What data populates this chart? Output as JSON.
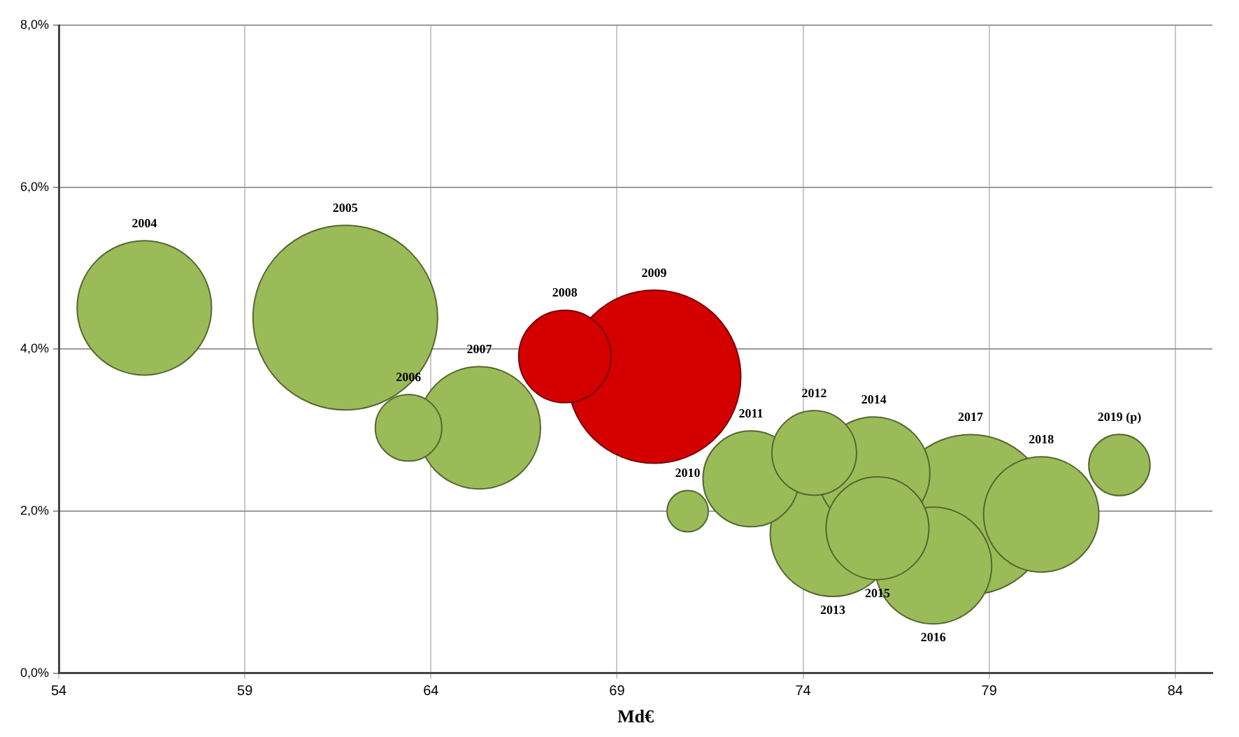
{
  "chart_data": {
    "type": "bubble",
    "xlabel": "Md€",
    "series": [
      {
        "colors": [
          "#9bbb59",
          "#9bbb59",
          "#9bbb59",
          "#9bbb59",
          "#d40000",
          "#d40000",
          "#9bbb59",
          "#9bbb59",
          "#9bbb59",
          "#9bbb59",
          "#9bbb59",
          "#9bbb59",
          "#9bbb59",
          "#9bbb59",
          "#9bbb59",
          "#9bbb59"
        ],
        "x": [
          56.3,
          61.7,
          63.4,
          65.3,
          67.6,
          70.0,
          70.9,
          72.6,
          74.3,
          74.8,
          75.9,
          76.0,
          77.5,
          78.5,
          80.4,
          82.5
        ],
        "values": [
          4.51,
          4.39,
          3.03,
          3.03,
          3.91,
          3.66,
          2.0,
          2.4,
          2.72,
          1.72,
          2.47,
          1.79,
          1.33,
          1.96,
          1.96,
          2.57
        ],
        "sizes": [
          0.53,
          1,
          0.13,
          0.44,
          0.25,
          0.88,
          0.05,
          0.27,
          0.21,
          0.46,
          0.37,
          0.31,
          0.4,
          0.75,
          0.39,
          0.11
        ]
      }
    ],
    "annotations": [
      "2004",
      "2005",
      "2006",
      "2007",
      "2008",
      "2009",
      "2010",
      "2011",
      "2012",
      "2013",
      "2014",
      "2015",
      "2016",
      "2017",
      "2018",
      "2019 (p)"
    ],
    "xlim": [
      54,
      85
    ],
    "xticks": [
      54,
      59,
      64,
      69,
      74,
      79,
      84
    ],
    "ylim": [
      0,
      8
    ],
    "yticks": [
      {
        "value": 0,
        "label": "0,0%"
      },
      {
        "value": 2,
        "label": "2,0%"
      },
      {
        "value": 4,
        "label": "4,0%"
      },
      {
        "value": 6,
        "label": "6,0%"
      },
      {
        "value": 8,
        "label": "8,0%"
      }
    ],
    "grid": true,
    "legend": false
  }
}
